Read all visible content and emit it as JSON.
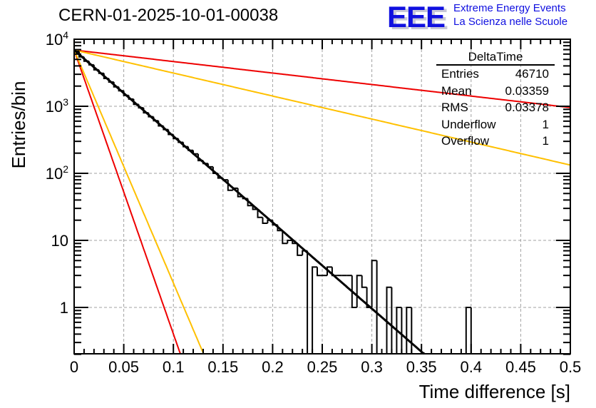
{
  "header": {
    "title": "CERN-01-2025-10-01-00038",
    "logo_mark": "EEE",
    "logo_line1": "Extreme Energy Events",
    "logo_line2": "La Scienza nelle Scuole"
  },
  "stats_box": {
    "title": "DeltaTime",
    "rows": [
      {
        "label": "Entries",
        "value": "46710"
      },
      {
        "label": "Mean",
        "value": "0.03359"
      },
      {
        "label": "RMS",
        "value": "0.03378"
      },
      {
        "label": "Underflow",
        "value": "1"
      },
      {
        "label": "Overflow",
        "value": "1"
      }
    ]
  },
  "colors": {
    "histogram": "#000000",
    "fit": "#000000",
    "red_line": "#ee0000",
    "yellow_line": "#ffc000",
    "grid": "#a0a0a0",
    "logo": "#1010e0"
  },
  "chart_data": {
    "type": "line",
    "title": "CERN-01-2025-10-01-00038",
    "xlabel": "Time difference [s]",
    "ylabel": "Entries/bin",
    "xlim": [
      0,
      0.5
    ],
    "ylim": [
      0.2,
      11000
    ],
    "yscale": "log",
    "grid": true,
    "x_ticks": [
      "0",
      "0.05",
      "0.1",
      "0.15",
      "0.2",
      "0.25",
      "0.3",
      "0.35",
      "0.4",
      "0.45",
      "0.5"
    ],
    "x_tick_values": [
      0,
      0.05,
      0.1,
      0.15,
      0.2,
      0.25,
      0.3,
      0.35,
      0.4,
      0.45,
      0.5
    ],
    "y_ticks": [
      "1",
      "10",
      "10^2",
      "10^3",
      "10^4"
    ],
    "y_tick_values": [
      1,
      10,
      100,
      1000,
      10000
    ],
    "histogram": {
      "name": "DeltaTime",
      "bin_width": 0.005,
      "x_start": 0,
      "values": [
        6600,
        5450,
        4700,
        4150,
        3500,
        3100,
        2600,
        2300,
        1950,
        1700,
        1450,
        1280,
        1070,
        950,
        800,
        700,
        610,
        510,
        450,
        380,
        330,
        290,
        250,
        220,
        195,
        155,
        140,
        125,
        100,
        85,
        80,
        56,
        60,
        45,
        42,
        33,
        29,
        22,
        18,
        20,
        17,
        14,
        9,
        10,
        9,
        6,
        7,
        0,
        4,
        3,
        3,
        4,
        3,
        3,
        3,
        3,
        1,
        3,
        2,
        1,
        5,
        0,
        0,
        2,
        0,
        1,
        0,
        1,
        0,
        0,
        0,
        0,
        0,
        0,
        0,
        0,
        0,
        0,
        0,
        1,
        0,
        0,
        0,
        0,
        0,
        0,
        0,
        0,
        0,
        0,
        0,
        0,
        0,
        0,
        0,
        0,
        0,
        0,
        0,
        0
      ]
    },
    "series": [
      {
        "name": "fit",
        "color": "#000000",
        "function": "exponential",
        "amplitude": 6900,
        "rate": 29.6
      },
      {
        "name": "red_steep",
        "color": "#ee0000",
        "function": "exponential",
        "amplitude": 6900,
        "rate": 97.5
      },
      {
        "name": "yellow_steep",
        "color": "#ffc000",
        "function": "exponential",
        "amplitude": 6900,
        "rate": 80.0
      },
      {
        "name": "red_shallow",
        "color": "#ee0000",
        "function": "exponential",
        "amplitude": 6900,
        "rate": 3.95
      },
      {
        "name": "yellow_shallow",
        "color": "#ffc000",
        "function": "exponential",
        "amplitude": 6900,
        "rate": 7.9
      }
    ],
    "legend": "top-right"
  }
}
